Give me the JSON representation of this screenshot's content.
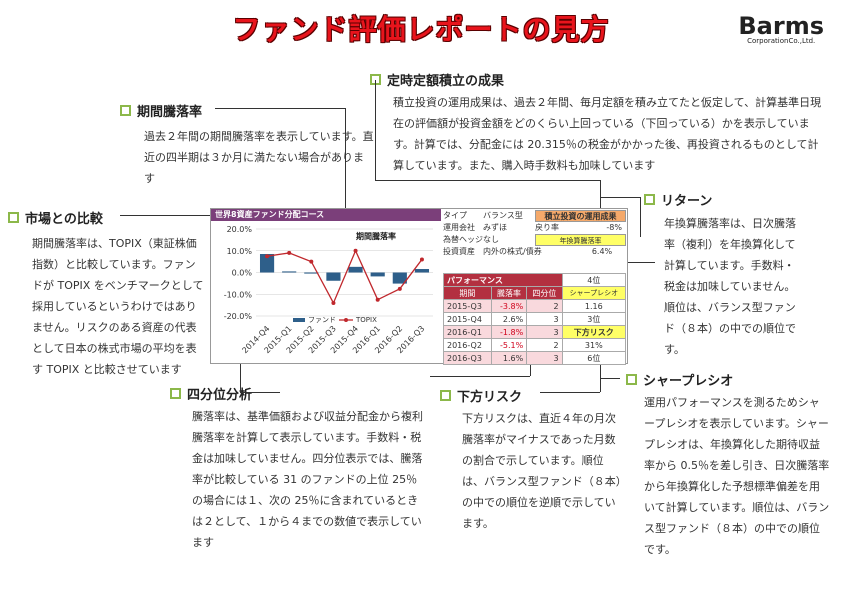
{
  "title": "ファンド評価レポートの見方",
  "logo": {
    "name": "Barms",
    "sub": "CorporationCo.,Ltd."
  },
  "sections": {
    "teiji": {
      "heading": "定時定額積立の成果",
      "text": "積立投資の運用成果は、過去２年間、毎月定額を積み立てたと仮定して、計算基準日現在の評価額が投資金額をどのくらい上回っている（下回っている）かを表示しています。計算では、分配金には 20.315％の税金がかかった後、再投資されるものとして計算しています。また、購入時手数料も加味しています"
    },
    "kikan": {
      "heading": "期間騰落率",
      "text": "過去２年間の期間騰落率を表示しています。直近の四半期は３か月に満たない場合があります"
    },
    "shijo": {
      "heading": "市場との比較",
      "text": "期間騰落率は、TOPIX（東証株価指数）と比較しています。ファンドが TOPIX をベンチマークとして採用しているというわけではありません。リスクのある資産の代表として日本の株式市場の平均を表す TOPIX と比較させています"
    },
    "return": {
      "heading": "リターン",
      "text": "年換算騰落率は、日次騰落率（複利）を年換算化して計算しています。手数料・税金は加味していません。順位は、バランス型ファンド（８本）の中での順位です。"
    },
    "shibun": {
      "heading": "四分位分析",
      "text": "騰落率は、基準価額および収益分配金から複利騰落率を計算して表示しています。手数料・税金は加味していません。四分位表示では、騰落率が比較している 31 のファンドの上位 25％の場合には１、次の 25％に含まれているときは２として、１から４までの数値で表示しています"
    },
    "kahou": {
      "heading": "下方リスク",
      "text": "下方リスクは、直近４年の月次騰落率がマイナスであった月数の割合で示しています。順位は、バランス型ファンド（８本）の中での順位を逆順で示しています。"
    },
    "sharpe": {
      "heading": "シャープレシオ",
      "text": "運用パフォーマンスを測るためシャープレシオを表示しています。シャープレシオは、年換算化した期待収益率から 0.5％を差し引き、日次騰落率から年換算化した予想標準偏差を用いて計算しています。順位は、バランス型ファンド（８本）の中での順位です。"
    }
  },
  "panel": {
    "header": "世界8資産ファンド分配コース",
    "chart_title": "期間騰落率",
    "info": {
      "type_label": "タイプ",
      "type_value": "バランス型",
      "company_label": "運用会社",
      "company_value": "みずほ",
      "hedge_label": "為替ヘッジ",
      "hedge_value": "なし",
      "asset_label": "投資資産",
      "asset_value": "内外の株式/債券",
      "tsumitate_tag": "積立投資の運用成果",
      "rate_label": "戻り率",
      "rate_value": "-8%",
      "annual_tag": "年換算騰落率",
      "annual_value": "6.4%",
      "annual_rank": "4位"
    },
    "perf": {
      "title": "パフォーマンス",
      "sharpe_tag": "シャープレシオ",
      "col_period": "期間",
      "col_rate": "騰落率",
      "col_quartile": "四分位",
      "sharpe_value": "1.16",
      "sharpe_rank": "3位",
      "downside_tag": "下方リスク",
      "downside_value": "31%",
      "downside_rank": "6位",
      "rows": [
        {
          "period": "2015-Q3",
          "rate": "-3.8%",
          "quartile": "2"
        },
        {
          "period": "2015-Q4",
          "rate": "2.6%",
          "quartile": "3"
        },
        {
          "period": "2016-Q1",
          "rate": "-1.8%",
          "quartile": "3"
        },
        {
          "period": "2016-Q2",
          "rate": "-5.1%",
          "quartile": "2"
        },
        {
          "period": "2016-Q3",
          "rate": "1.6%",
          "quartile": "3"
        }
      ]
    }
  },
  "chart_data": {
    "type": "bar",
    "title": "期間騰落率",
    "categories": [
      "2014-Q4",
      "2015-Q1",
      "2015-Q2",
      "2015-Q3",
      "2015-Q4",
      "2016-Q1",
      "2016-Q2",
      "2016-Q3"
    ],
    "series": [
      {
        "name": "ファンド",
        "type": "bar",
        "values": [
          8.5,
          0.5,
          -0.5,
          -3.8,
          2.6,
          -1.8,
          -5.1,
          1.6
        ]
      },
      {
        "name": "TOPIX",
        "type": "line",
        "values": [
          7.5,
          9.0,
          5.0,
          -14.0,
          10.0,
          -12.5,
          -7.5,
          6.0
        ]
      }
    ],
    "ylim": [
      -20,
      20
    ],
    "yticks": [
      "20.0%",
      "10.0%",
      "0.0%",
      "-10.0%",
      "-20.0%"
    ],
    "ytick_values": [
      20,
      10,
      0,
      -10,
      -20
    ],
    "grid": true,
    "legend": "bottom",
    "colors": {
      "fund": "#2e5f8a",
      "topix": "#c0282d"
    }
  }
}
